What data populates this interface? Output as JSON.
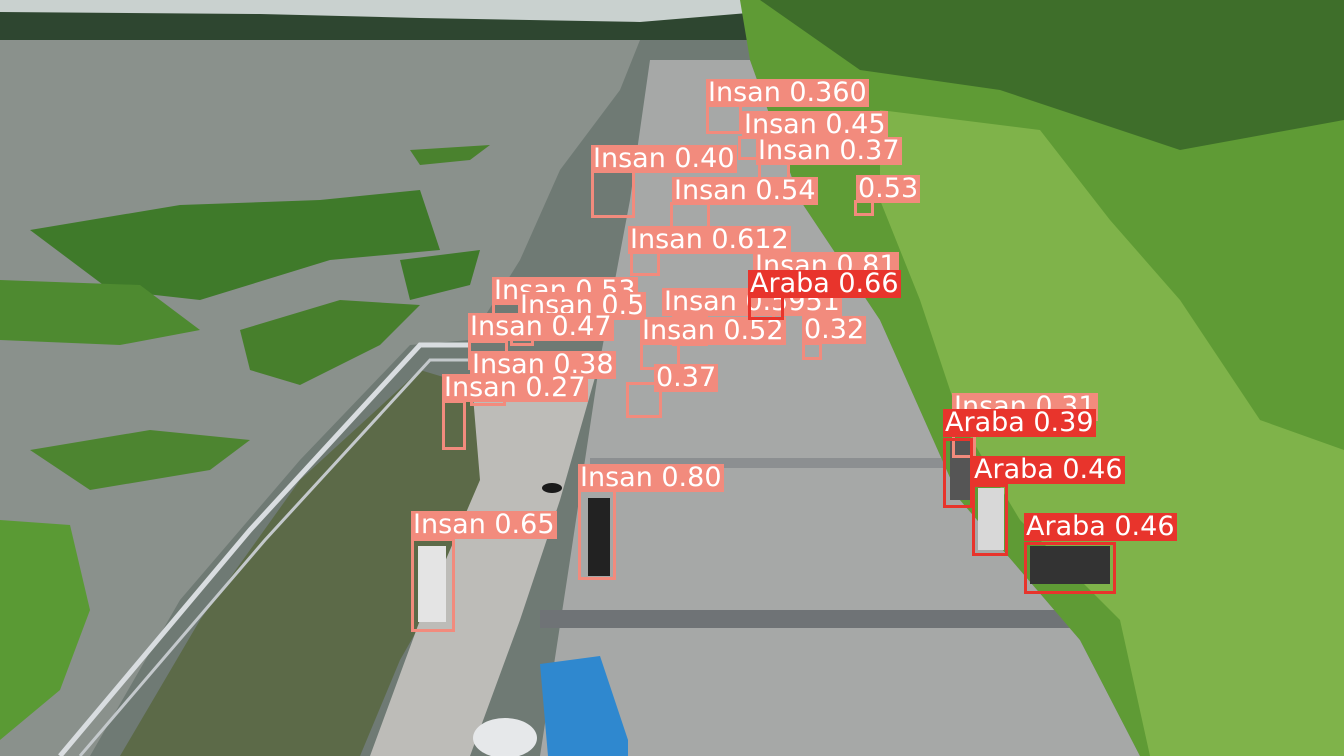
{
  "classes": {
    "person": {
      "name": "Insan",
      "color": "#f28b7d"
    },
    "car": {
      "name": "Araba",
      "color": "#e8342c"
    }
  },
  "detections": [
    {
      "cls": "person",
      "label": "Insan 0.80",
      "score": 0.8
    },
    {
      "cls": "person",
      "label": "Insan 0.65",
      "score": 0.65
    },
    {
      "cls": "person",
      "label": "Insan 0.81",
      "score": 0.81
    },
    {
      "cls": "person",
      "label": "Insan 0.360",
      "score": 0.36
    },
    {
      "cls": "person",
      "label": "Insan 0.45",
      "score": 0.45
    },
    {
      "cls": "person",
      "label": "Insan 0.37",
      "score": 0.37
    },
    {
      "cls": "person",
      "label": "Insan 0.40",
      "score": 0.4
    },
    {
      "cls": "person",
      "label": "Insan 0.54",
      "score": 0.54
    },
    {
      "cls": "person",
      "label": "0.53",
      "score": 0.53
    },
    {
      "cls": "person",
      "label": "Insan 0.612",
      "score": 0.612
    },
    {
      "cls": "person",
      "label": "Insan 0.53",
      "score": 0.53
    },
    {
      "cls": "person",
      "label": "Insan 0.5",
      "score": 0.5
    },
    {
      "cls": "person",
      "label": "Insan 0.5951",
      "score": 0.5951
    },
    {
      "cls": "person",
      "label": "Insan 0.47",
      "score": 0.47
    },
    {
      "cls": "person",
      "label": "Insan 0.52",
      "score": 0.52
    },
    {
      "cls": "person",
      "label": "0.32",
      "score": 0.32
    },
    {
      "cls": "person",
      "label": "Insan 0.38",
      "score": 0.38
    },
    {
      "cls": "person",
      "label": "0.37",
      "score": 0.37
    },
    {
      "cls": "person",
      "label": "Insan 0.27",
      "score": 0.27
    },
    {
      "cls": "person",
      "label": "Insan 0.31",
      "score": 0.31
    },
    {
      "cls": "car",
      "label": "Araba 0.66",
      "score": 0.66
    },
    {
      "cls": "car",
      "label": "Araba 0.39",
      "score": 0.39
    },
    {
      "cls": "car",
      "label": "Araba 0.46",
      "score": 0.46
    },
    {
      "cls": "car",
      "label": "Araba 0.46",
      "score": 0.46
    }
  ]
}
